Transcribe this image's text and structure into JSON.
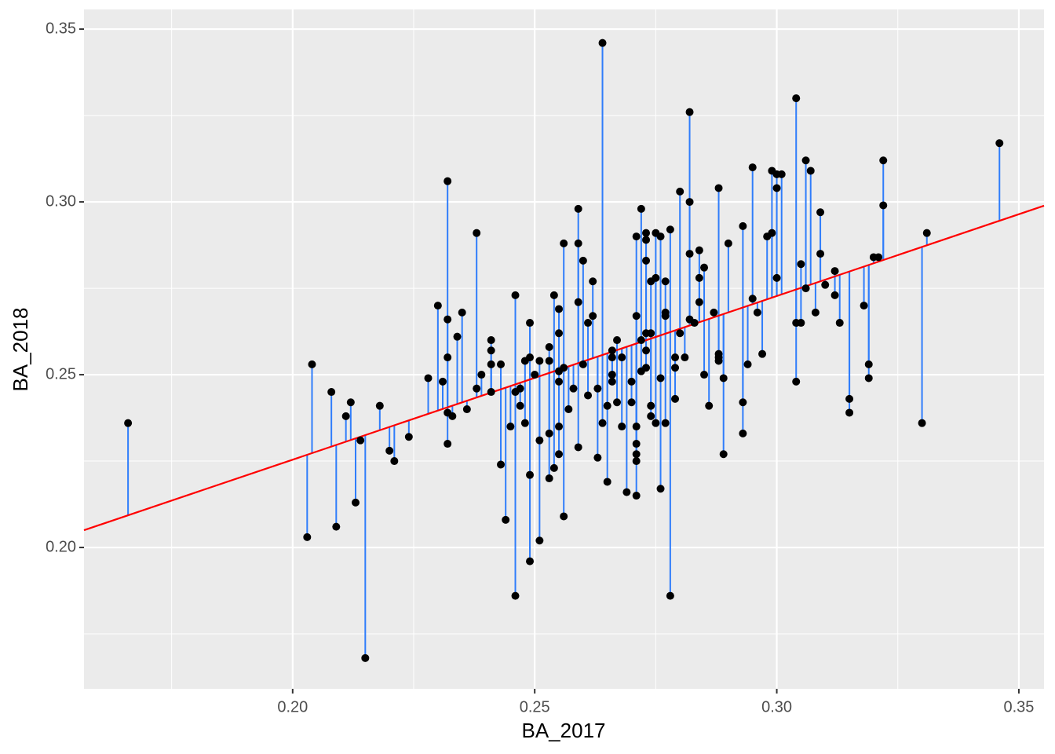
{
  "chart_data": {
    "type": "scatter",
    "x_label": "BA_2017",
    "y_label": "BA_2018",
    "xlim": [
      0.1569,
      0.3552
    ],
    "ylim": [
      0.1591,
      0.3557
    ],
    "xticks": [
      {
        "value": 0.2,
        "label": "0.20"
      },
      0.25,
      {
        "value": 0.3,
        "label": "0.30"
      },
      0.35
    ],
    "yticks": [
      {
        "value": 0.2,
        "label": "0.20"
      },
      0.25,
      {
        "value": 0.3,
        "label": "0.30"
      },
      0.35
    ],
    "grid": true,
    "minor_grid": true,
    "panel_color": "#ebebeb",
    "point_color": "#000000",
    "segment_color": "#2f7dfb",
    "fit_color": "#ff0000",
    "fit": {
      "x": [
        0.1569,
        0.3552
      ],
      "y": [
        0.205,
        0.2989
      ]
    },
    "x": [
      0.166,
      0.203,
      0.204,
      0.208,
      0.209,
      0.211,
      0.212,
      0.213,
      0.214,
      0.215,
      0.218,
      0.22,
      0.221,
      0.224,
      0.228,
      0.23,
      0.231,
      0.232,
      0.232,
      0.232,
      0.232,
      0.232,
      0.233,
      0.234,
      0.235,
      0.236,
      0.238,
      0.238,
      0.239,
      0.241,
      0.241,
      0.241,
      0.241,
      0.243,
      0.243,
      0.244,
      0.245,
      0.246,
      0.246,
      0.246,
      0.247,
      0.247,
      0.248,
      0.248,
      0.249,
      0.249,
      0.249,
      0.249,
      0.25,
      0.251,
      0.251,
      0.251,
      0.253,
      0.253,
      0.253,
      0.253,
      0.254,
      0.254,
      0.255,
      0.255,
      0.255,
      0.255,
      0.255,
      0.255,
      0.256,
      0.256,
      0.256,
      0.257,
      0.258,
      0.259,
      0.259,
      0.259,
      0.259,
      0.26,
      0.26,
      0.261,
      0.261,
      0.262,
      0.262,
      0.263,
      0.263,
      0.264,
      0.264,
      0.265,
      0.265,
      0.266,
      0.266,
      0.266,
      0.266,
      0.267,
      0.267,
      0.268,
      0.268,
      0.269,
      0.27,
      0.27,
      0.271,
      0.271,
      0.271,
      0.271,
      0.271,
      0.271,
      0.271,
      0.272,
      0.272,
      0.272,
      0.273,
      0.273,
      0.273,
      0.273,
      0.273,
      0.273,
      0.274,
      0.274,
      0.274,
      0.274,
      0.275,
      0.275,
      0.275,
      0.276,
      0.276,
      0.276,
      0.277,
      0.277,
      0.277,
      0.277,
      0.278,
      0.278,
      0.279,
      0.279,
      0.279,
      0.28,
      0.28,
      0.281,
      0.282,
      0.282,
      0.282,
      0.282,
      0.283,
      0.284,
      0.284,
      0.284,
      0.285,
      0.285,
      0.286,
      0.287,
      0.288,
      0.288,
      0.288,
      0.288,
      0.289,
      0.289,
      0.29,
      0.293,
      0.293,
      0.293,
      0.294,
      0.295,
      0.295,
      0.296,
      0.297,
      0.298,
      0.299,
      0.299,
      0.3,
      0.3,
      0.3,
      0.301,
      0.304,
      0.304,
      0.304,
      0.305,
      0.305,
      0.306,
      0.306,
      0.307,
      0.308,
      0.309,
      0.309,
      0.31,
      0.312,
      0.312,
      0.313,
      0.315,
      0.315,
      0.318,
      0.319,
      0.319,
      0.32,
      0.321,
      0.322,
      0.322,
      0.33,
      0.331,
      0.346
    ],
    "y": [
      0.236,
      0.203,
      0.253,
      0.245,
      0.206,
      0.238,
      0.242,
      0.213,
      0.231,
      0.168,
      0.241,
      0.228,
      0.225,
      0.232,
      0.249,
      0.27,
      0.248,
      0.266,
      0.239,
      0.306,
      0.23,
      0.255,
      0.238,
      0.261,
      0.268,
      0.24,
      0.246,
      0.291,
      0.25,
      0.26,
      0.253,
      0.245,
      0.257,
      0.224,
      0.253,
      0.208,
      0.235,
      0.273,
      0.186,
      0.245,
      0.241,
      0.246,
      0.236,
      0.254,
      0.255,
      0.265,
      0.196,
      0.221,
      0.25,
      0.202,
      0.231,
      0.254,
      0.258,
      0.22,
      0.233,
      0.254,
      0.273,
      0.223,
      0.269,
      0.248,
      0.262,
      0.235,
      0.251,
      0.227,
      0.209,
      0.252,
      0.288,
      0.24,
      0.246,
      0.298,
      0.288,
      0.271,
      0.229,
      0.253,
      0.283,
      0.265,
      0.244,
      0.277,
      0.267,
      0.246,
      0.226,
      0.346,
      0.236,
      0.241,
      0.219,
      0.257,
      0.255,
      0.25,
      0.248,
      0.242,
      0.26,
      0.235,
      0.255,
      0.216,
      0.242,
      0.248,
      0.29,
      0.225,
      0.267,
      0.235,
      0.227,
      0.215,
      0.23,
      0.26,
      0.298,
      0.251,
      0.252,
      0.262,
      0.283,
      0.291,
      0.289,
      0.257,
      0.241,
      0.262,
      0.277,
      0.238,
      0.236,
      0.291,
      0.278,
      0.249,
      0.217,
      0.29,
      0.236,
      0.267,
      0.268,
      0.277,
      0.186,
      0.292,
      0.252,
      0.243,
      0.255,
      0.262,
      0.303,
      0.255,
      0.266,
      0.285,
      0.3,
      0.326,
      0.265,
      0.278,
      0.271,
      0.286,
      0.281,
      0.25,
      0.241,
      0.268,
      0.256,
      0.255,
      0.304,
      0.254,
      0.249,
      0.227,
      0.288,
      0.233,
      0.242,
      0.293,
      0.253,
      0.31,
      0.272,
      0.268,
      0.256,
      0.29,
      0.291,
      0.309,
      0.304,
      0.308,
      0.278,
      0.308,
      0.33,
      0.248,
      0.265,
      0.265,
      0.282,
      0.312,
      0.275,
      0.309,
      0.268,
      0.297,
      0.285,
      0.276,
      0.28,
      0.273,
      0.265,
      0.243,
      0.239,
      0.27,
      0.253,
      0.249,
      0.284,
      0.284,
      0.312,
      0.299,
      0.236,
      0.291,
      0.317
    ]
  }
}
